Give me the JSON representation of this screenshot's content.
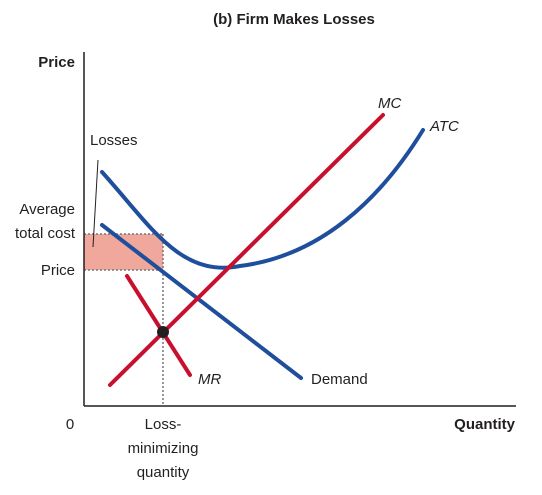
{
  "title": "(b) Firm Makes Losses",
  "axes": {
    "y_label": "Price",
    "x_label": "Quantity",
    "origin": "0"
  },
  "labels": {
    "losses": "Losses",
    "average_total_cost_line1": "Average",
    "average_total_cost_line2": "total cost",
    "price": "Price",
    "loss_min_line1": "Loss-",
    "loss_min_line2": "minimizing",
    "loss_min_line3": "quantity"
  },
  "curves": {
    "mc": "MC",
    "atc": "ATC",
    "mr": "MR",
    "demand": "Demand"
  },
  "colors": {
    "mc": "#c8102e",
    "mr": "#c8102e",
    "atc": "#1f4e9c",
    "demand": "#1f4e9c",
    "loss_area": "#efa89b",
    "axis": "#231f20"
  }
}
